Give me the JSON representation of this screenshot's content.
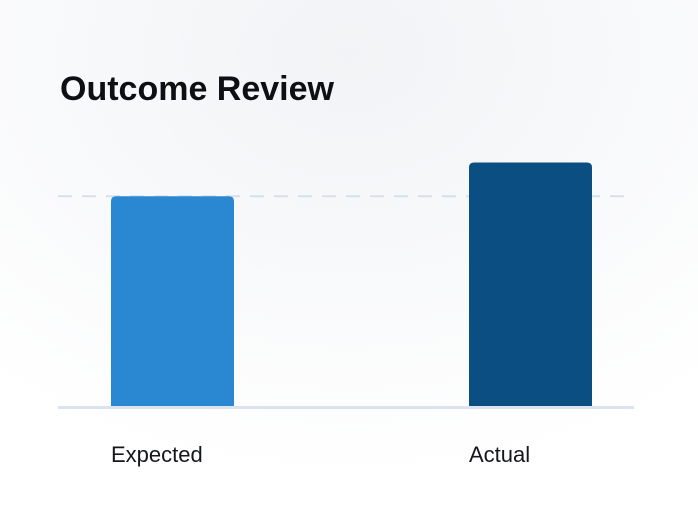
{
  "chart_data": {
    "type": "bar",
    "title": "Outcome Review",
    "categories": [
      "Expected",
      "Actual"
    ],
    "series": [
      {
        "colors": [
          "#2a87d2",
          "#0b4f82"
        ],
        "values": [
          100,
          116
        ]
      }
    ],
    "reference_line": 100,
    "ylim": [
      0,
      130
    ]
  }
}
